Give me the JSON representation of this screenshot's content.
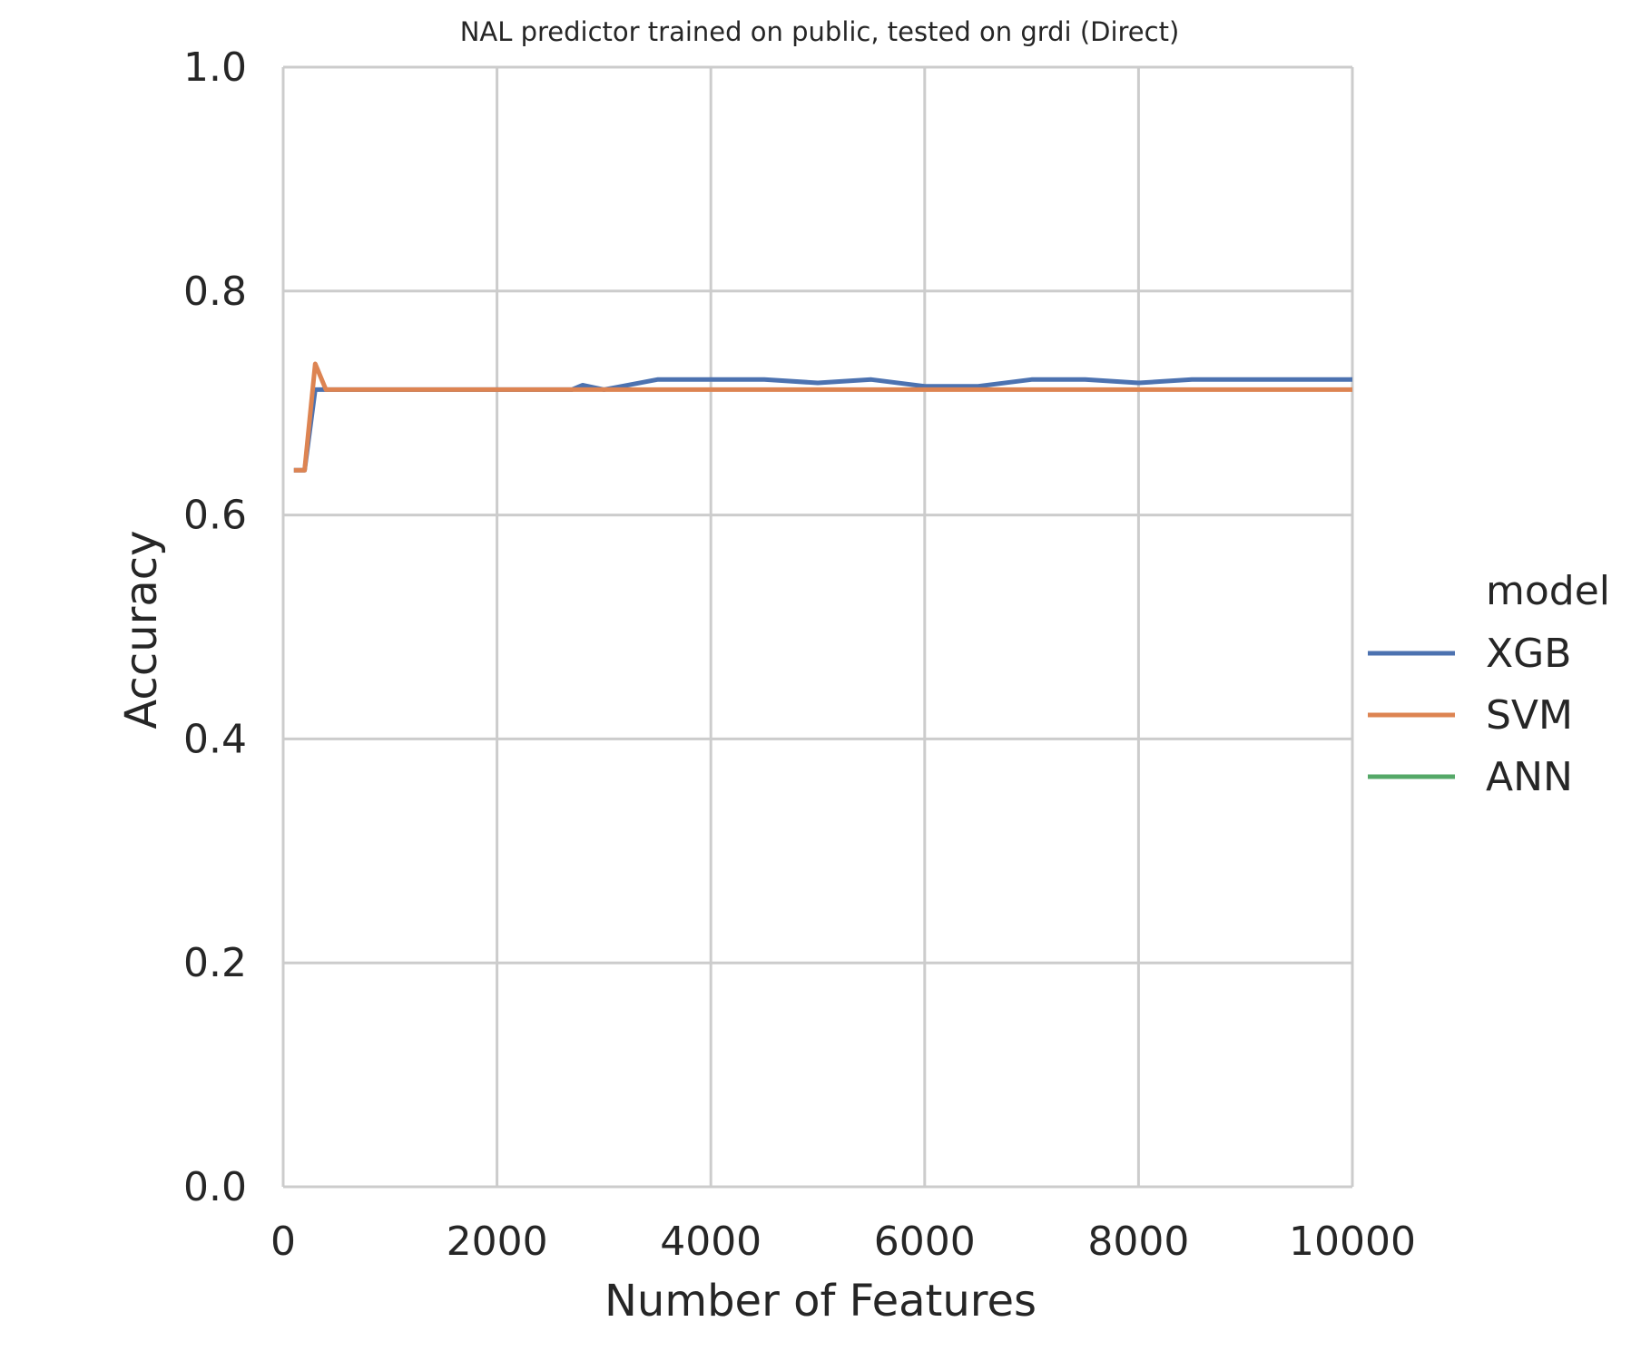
{
  "chart_data": {
    "type": "line",
    "title": "NAL predictor trained on public, tested on grdi (Direct)",
    "xlabel": "Number of Features",
    "ylabel": "Accuracy",
    "xlim": [
      0,
      10000
    ],
    "ylim": [
      0.0,
      1.0
    ],
    "x_ticks": [
      "0",
      "2000",
      "4000",
      "6000",
      "8000",
      "10000"
    ],
    "y_ticks": [
      "0.0",
      "0.2",
      "0.4",
      "0.6",
      "0.8",
      "1.0"
    ],
    "grid": true,
    "legend": {
      "title": "model",
      "placement": "right"
    },
    "series": [
      {
        "name": "XGB",
        "color": "#4c72b0",
        "x": [
          100,
          200,
          300,
          400,
          500,
          1000,
          1500,
          2000,
          2500,
          2700,
          2800,
          3000,
          3500,
          4000,
          4500,
          5000,
          5500,
          6000,
          6500,
          7000,
          7500,
          8000,
          8500,
          9000,
          9500,
          10000
        ],
        "values": [
          0.64,
          0.64,
          0.712,
          0.712,
          0.712,
          0.712,
          0.712,
          0.712,
          0.712,
          0.712,
          0.716,
          0.712,
          0.721,
          0.721,
          0.721,
          0.718,
          0.721,
          0.715,
          0.715,
          0.721,
          0.721,
          0.718,
          0.721,
          0.721,
          0.721,
          0.721
        ]
      },
      {
        "name": "SVM",
        "color": "#dd8452",
        "x": [
          100,
          200,
          300,
          400,
          500,
          1000,
          2000,
          3000,
          4000,
          5000,
          6000,
          7000,
          8000,
          9000,
          10000
        ],
        "values": [
          0.64,
          0.64,
          0.735,
          0.712,
          0.712,
          0.712,
          0.712,
          0.712,
          0.712,
          0.712,
          0.712,
          0.712,
          0.712,
          0.712,
          0.712
        ]
      },
      {
        "name": "ANN",
        "color": "#55a868",
        "x": [],
        "values": []
      }
    ]
  }
}
